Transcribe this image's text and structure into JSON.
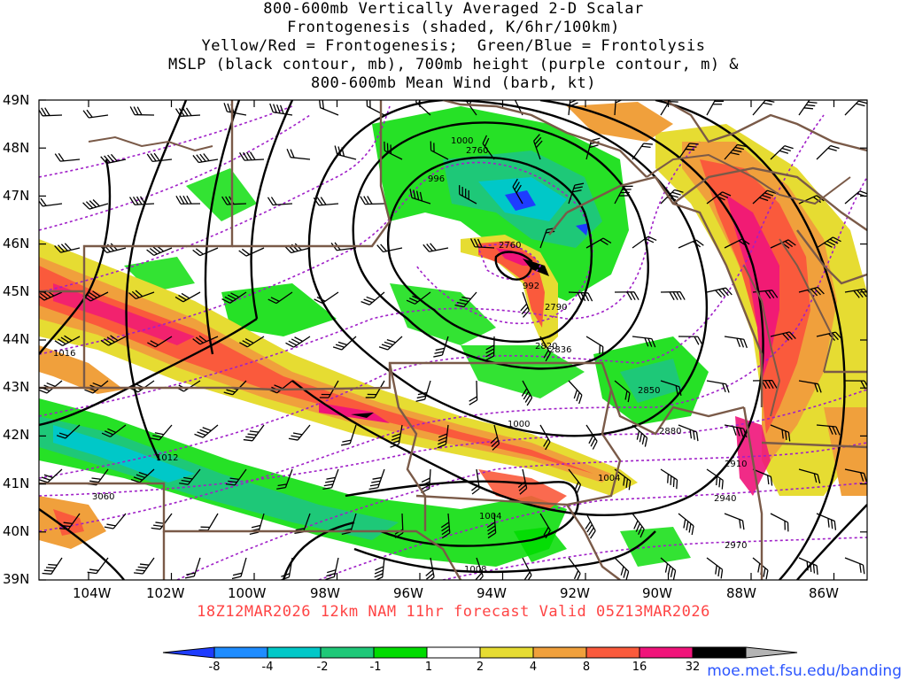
{
  "title_lines": [
    "800-600mb Vertically Averaged 2-D Scalar",
    "Frontogenesis (shaded, K/6hr/100km)",
    "Yellow/Red = Frontogenesis;  Green/Blue = Frontolysis",
    "MSLP (black contour, mb), 700mb height (purple contour, m) &",
    "800-600mb Mean Wind (barb, kt)"
  ],
  "lat_labels": [
    "49N",
    "48N",
    "47N",
    "46N",
    "45N",
    "44N",
    "43N",
    "42N",
    "41N",
    "40N",
    "39N"
  ],
  "lon_labels": [
    "104W",
    "102W",
    "100W",
    "98W",
    "96W",
    "94W",
    "92W",
    "90W",
    "88W",
    "86W"
  ],
  "subtitle": "18Z12MAR2026 12km NAM 11hr forecast Valid 05Z13MAR2026",
  "mslp_labels": [
    "1000",
    "996",
    "992",
    "1016",
    "1012",
    "1000",
    "1004",
    "1004",
    "1008",
    "2836"
  ],
  "height_labels": [
    "2760",
    "2760",
    "2790",
    "2820",
    "2850",
    "2880",
    "2910",
    "2940",
    "2970",
    "3060"
  ],
  "colorbar": {
    "ticks": [
      "-8",
      "-4",
      "-2",
      "-1",
      "1",
      "2",
      "4",
      "8",
      "16",
      "32"
    ],
    "colors": [
      "#1e3cff",
      "#1e8cff",
      "#00c8c8",
      "#1ec878",
      "#00dc00",
      "#ffffff",
      "#e6dc32",
      "#f0a03c",
      "#fa5a3c",
      "#f0147a",
      "#000000",
      "#b4b4b4"
    ]
  },
  "credit": "moe.met.fsu.edu/banding"
}
